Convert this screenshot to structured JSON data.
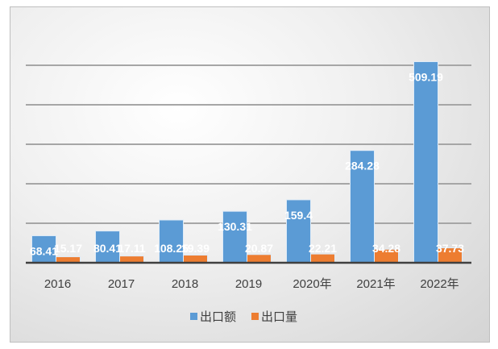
{
  "chart_data": {
    "type": "bar",
    "title": "",
    "xlabel": "",
    "ylabel": "",
    "categories": [
      "2016",
      "2017",
      "2018",
      "2019",
      "2020年",
      "2021年",
      "2022年"
    ],
    "series": [
      {
        "name": "出口额",
        "color": "#5b9bd5",
        "values": [
          68.41,
          80.41,
          108.25,
          130.31,
          159.4,
          284.28,
          509.19
        ],
        "labels": [
          "68.41",
          "80.41",
          "108.25",
          "130.31",
          "159.4",
          "284.28",
          "509.19"
        ]
      },
      {
        "name": "出口量",
        "color": "#ed7d31",
        "values": [
          15.17,
          17.11,
          19.39,
          20.87,
          22.21,
          34.28,
          37.73
        ],
        "labels": [
          "15.17",
          "17.11",
          "19.39",
          "20.87",
          "22.21",
          "34.28",
          "37.73"
        ]
      }
    ],
    "ylim": [
      0,
      500
    ],
    "y_gridline_step": 100,
    "y_tick_labels_shown": false,
    "grid": true,
    "legend": "bottom"
  }
}
